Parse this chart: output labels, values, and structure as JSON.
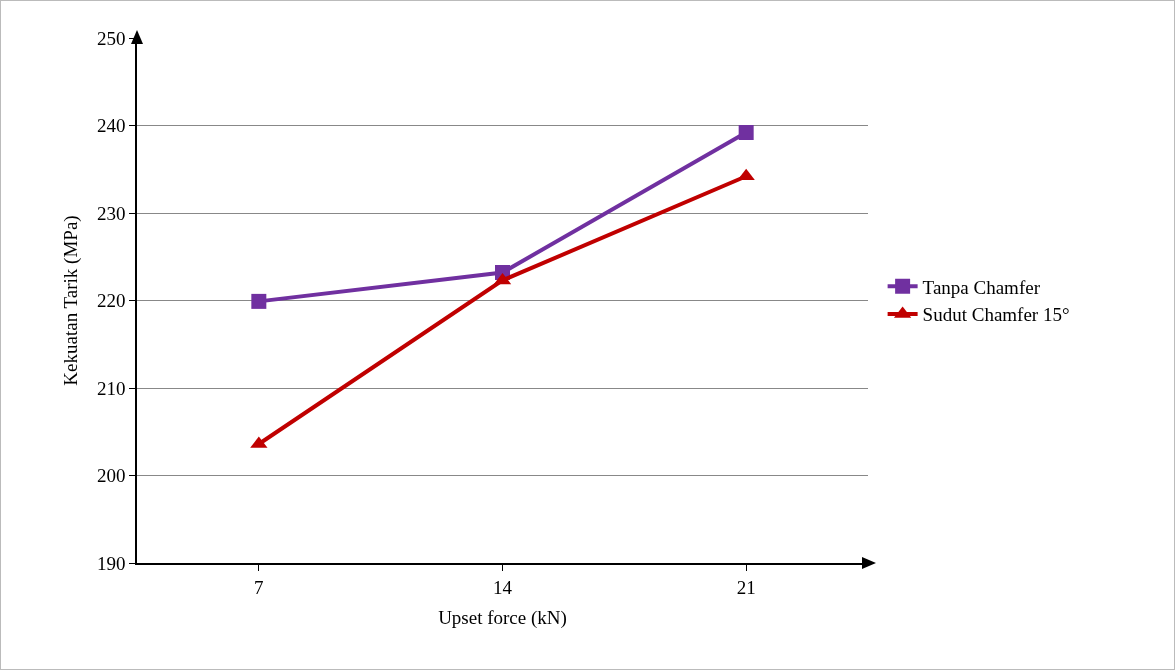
{
  "chart_data": {
    "type": "line",
    "xlabel": "Upset force (kN)",
    "ylabel": "Kekuatan Tarik (MPa)",
    "categories": [
      "7",
      "14",
      "21"
    ],
    "series": [
      {
        "name": "Tanpa Chamfer",
        "color": "#7030a0",
        "marker": "square",
        "values": [
          219.9,
          223.2,
          239.2
        ]
      },
      {
        "name": "Sudut Chamfer 15°",
        "color": "#c00000",
        "marker": "triangle",
        "values": [
          203.6,
          222.3,
          234.2
        ]
      }
    ],
    "ylim": [
      190,
      250
    ],
    "yticks": [
      190,
      200,
      210,
      220,
      230,
      240,
      250
    ],
    "grid": "y",
    "legend": "right",
    "line_style": "solid"
  }
}
